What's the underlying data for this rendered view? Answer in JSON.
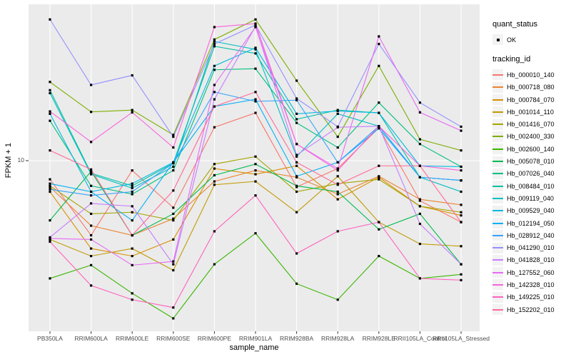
{
  "chart_data": {
    "type": "line",
    "xlabel": "sample_name",
    "ylabel": "FPKM + 1",
    "x_categories": [
      "PB350LA",
      "RRIM600LA",
      "RRIM600LE",
      "RRIM600SE",
      "RRIM600PE",
      "RRIM901LA",
      "RRIM928BA",
      "RRIM928LA",
      "RRIM928LE",
      "RRII105LA_Control",
      "RRII105LA_Stressed"
    ],
    "y_scale": "log10",
    "y_ticks": [
      10
    ],
    "y_tick_labels": [
      "10"
    ],
    "ylim": [
      1.3,
      65
    ],
    "legend_position": "right",
    "grid": "white major gridlines on gray panel",
    "marker": "small black square at every data point",
    "series": [
      {
        "name": "Hb_000010_140",
        "color": "#F8766D",
        "values": [
          8.0,
          4.1,
          8.9,
          5.7,
          14.9,
          17.7,
          7.3,
          9.1,
          14.8,
          6.2,
          4.8
        ]
      },
      {
        "name": "Hb_000718_080",
        "color": "#EA8331",
        "values": [
          7.3,
          4.6,
          4.1,
          5.0,
          7.8,
          8.9,
          8.2,
          6.7,
          8.3,
          6.3,
          5.9
        ]
      },
      {
        "name": "Hb_000784_070",
        "color": "#D89000",
        "values": [
          6.9,
          3.5,
          3.2,
          3.9,
          9.1,
          8.5,
          9.4,
          6.3,
          8.2,
          5.8,
          5.2
        ]
      },
      {
        "name": "Hb_001014_110",
        "color": "#C09B00",
        "values": [
          3.9,
          3.2,
          3.5,
          2.7,
          7.5,
          7.8,
          5.4,
          8.3,
          4.8,
          3.7,
          3.6
        ]
      },
      {
        "name": "Hb_001416_070",
        "color": "#A3A500",
        "values": [
          7.4,
          5.3,
          5.4,
          4.9,
          9.6,
          10.5,
          6.9,
          7.6,
          8.0,
          5.8,
          5.4
        ]
      },
      {
        "name": "Hb_002400_330",
        "color": "#7CAE00",
        "values": [
          25.6,
          17.9,
          18.3,
          13.6,
          42.5,
          54.0,
          26.0,
          13.3,
          31.0,
          12.9,
          11.3
        ]
      },
      {
        "name": "Hb_002600_140",
        "color": "#39B600",
        "values": [
          2.45,
          2.87,
          2.05,
          1.52,
          2.9,
          4.2,
          2.3,
          1.9,
          3.2,
          2.45,
          2.57
        ]
      },
      {
        "name": "Hb_005078_010",
        "color": "#00BB4E",
        "values": [
          4.9,
          8.8,
          4.1,
          5.3,
          8.4,
          9.6,
          7.4,
          6.9,
          4.4,
          5.3,
          2.9
        ]
      },
      {
        "name": "Hb_007026_040",
        "color": "#00BF7D",
        "values": [
          16.1,
          7.4,
          6.7,
          8.9,
          29.6,
          30.0,
          15.7,
          11.7,
          20.0,
          12.2,
          9.3
        ]
      },
      {
        "name": "Hb_008484_010",
        "color": "#00C1A3",
        "values": [
          23.2,
          8.6,
          7.4,
          9.7,
          39.2,
          36.0,
          16.4,
          18.3,
          17.7,
          8.2,
          7.9
        ]
      },
      {
        "name": "Hb_009119_040",
        "color": "#00BFC4",
        "values": [
          22.4,
          8.5,
          7.2,
          9.3,
          41.5,
          37.8,
          10.5,
          17.5,
          15.1,
          8.2,
          6.9
        ]
      },
      {
        "name": "Hb_009529_040",
        "color": "#00BAE0",
        "values": [
          17.5,
          6.9,
          7.6,
          9.8,
          31.0,
          38.5,
          17.5,
          18.1,
          17.7,
          9.4,
          9.3
        ]
      },
      {
        "name": "Hb_012194_050",
        "color": "#00B0F6",
        "values": [
          7.6,
          6.9,
          4.9,
          9.8,
          19.1,
          20.8,
          8.3,
          9.8,
          14.7,
          8.2,
          7.9
        ]
      },
      {
        "name": "Hb_028912_040",
        "color": "#35A2FF",
        "values": [
          7.1,
          6.6,
          6.9,
          9.7,
          22.7,
          20.3,
          20.6,
          9.8,
          15.1,
          8.2,
          7.9
        ]
      },
      {
        "name": "Hb_041290_010",
        "color": "#9590FF",
        "values": [
          54.0,
          24.7,
          27.7,
          13.3,
          40.3,
          50.5,
          21.0,
          15.0,
          40.3,
          20.0,
          15.0
        ]
      },
      {
        "name": "Hb_041828_010",
        "color": "#C77CFF",
        "values": [
          4.0,
          6.0,
          5.8,
          2.9,
          20.8,
          49.7,
          10.7,
          14.9,
          15.1,
          4.7,
          2.9
        ]
      },
      {
        "name": "Hb_127552_060",
        "color": "#E76BF3",
        "values": [
          3.95,
          3.9,
          2.87,
          3.0,
          24.7,
          49.3,
          12.2,
          9.1,
          44.1,
          17.8,
          14.3
        ]
      },
      {
        "name": "Hb_142328_010",
        "color": "#FA62DB",
        "values": [
          18.0,
          12.5,
          17.8,
          11.7,
          49.3,
          51.4,
          12.2,
          8.9,
          15.1,
          9.4,
          8.9
        ]
      },
      {
        "name": "Hb_149225_010",
        "color": "#FF62BC",
        "values": [
          3.8,
          2.25,
          1.9,
          1.73,
          4.3,
          6.6,
          3.3,
          4.3,
          4.8,
          2.45,
          2.4
        ]
      },
      {
        "name": "Hb_152202_010",
        "color": "#FF6A98",
        "values": [
          11.3,
          9.0,
          4.1,
          7.0,
          19.1,
          22.7,
          9.8,
          7.5,
          9.4,
          9.4,
          4.8
        ]
      }
    ]
  },
  "legend": {
    "quant_status": {
      "title": "quant_status",
      "items": [
        {
          "label": "OK",
          "marker": "black-point"
        }
      ]
    },
    "tracking_id": {
      "title": "tracking_id"
    }
  },
  "colors": {
    "background": "#FFFFFF",
    "panel_bg": "#EBEBEB",
    "gridline": "#FFFFFF",
    "tick_mark": "#333333",
    "tick_text": "#4D4D4D",
    "axis_title_text": "#000000",
    "legend_key_bg": "#F2F2F2",
    "point": "#000000"
  }
}
